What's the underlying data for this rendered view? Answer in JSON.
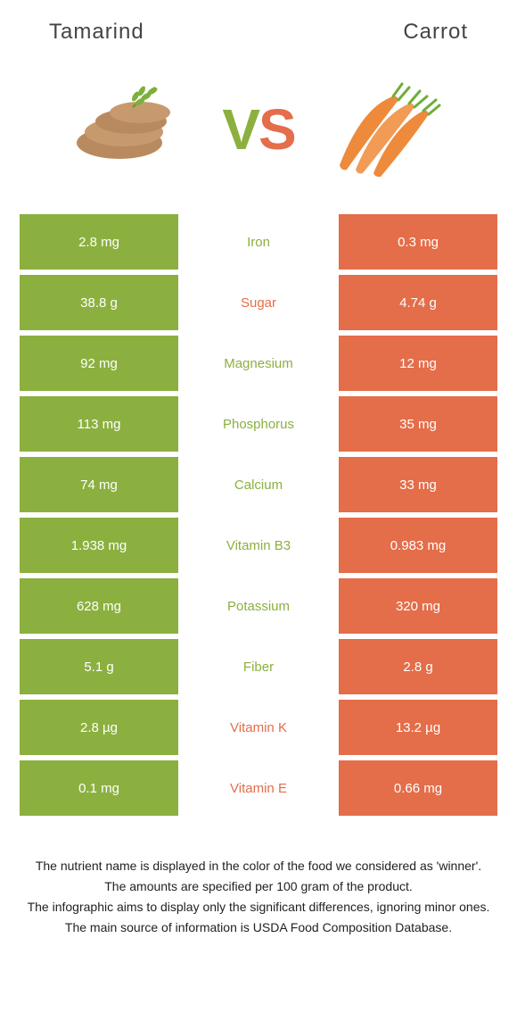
{
  "header": {
    "left_title": "Tamarind",
    "right_title": "Carrot"
  },
  "colors": {
    "left": "#8bb03f",
    "right": "#e46d4a",
    "vs_v": "#8bb03f",
    "vs_s": "#e46d4a"
  },
  "rows": [
    {
      "left": "2.8 mg",
      "label": "Iron",
      "right": "0.3 mg",
      "winner": "left"
    },
    {
      "left": "38.8 g",
      "label": "Sugar",
      "right": "4.74 g",
      "winner": "right"
    },
    {
      "left": "92 mg",
      "label": "Magnesium",
      "right": "12 mg",
      "winner": "left"
    },
    {
      "left": "113 mg",
      "label": "Phosphorus",
      "right": "35 mg",
      "winner": "left"
    },
    {
      "left": "74 mg",
      "label": "Calcium",
      "right": "33 mg",
      "winner": "left"
    },
    {
      "left": "1.938 mg",
      "label": "Vitamin B3",
      "right": "0.983 mg",
      "winner": "left"
    },
    {
      "left": "628 mg",
      "label": "Potassium",
      "right": "320 mg",
      "winner": "left"
    },
    {
      "left": "5.1 g",
      "label": "Fiber",
      "right": "2.8 g",
      "winner": "left"
    },
    {
      "left": "2.8 µg",
      "label": "Vitamin K",
      "right": "13.2 µg",
      "winner": "right"
    },
    {
      "left": "0.1 mg",
      "label": "Vitamin E",
      "right": "0.66 mg",
      "winner": "right"
    }
  ],
  "footnotes": [
    "The nutrient name is displayed in the color of the food we considered as 'winner'.",
    "The amounts are specified per 100 gram of the product.",
    "The infographic aims to display only the significant differences, ignoring minor ones.",
    "The main source of information is USDA Food Composition Database."
  ]
}
